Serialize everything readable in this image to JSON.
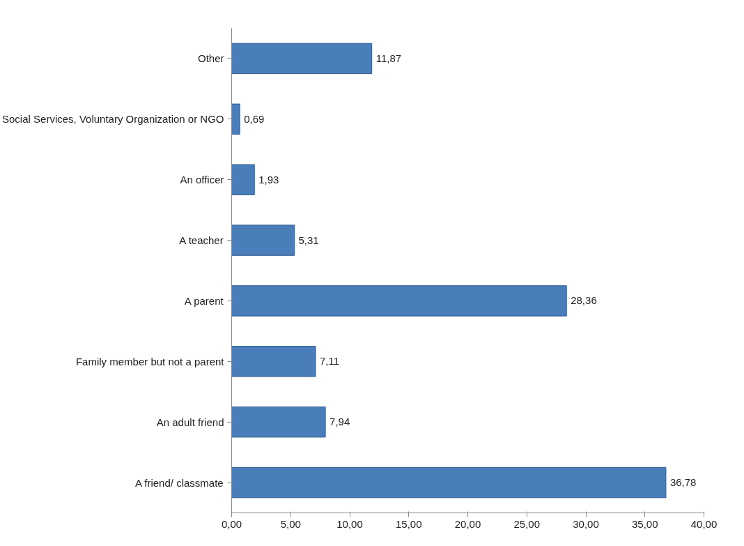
{
  "chart_data": {
    "type": "bar",
    "orientation": "horizontal",
    "categories": [
      "Other",
      "Social Services, Voluntary Organization or NGO",
      "An officer",
      "A teacher",
      "A parent",
      "Family member but not a parent",
      "An adult friend",
      "A friend/ classmate"
    ],
    "values": [
      11.87,
      0.69,
      1.93,
      5.31,
      28.36,
      7.11,
      7.94,
      36.78
    ],
    "value_labels": [
      "11,87",
      "0,69",
      "1,93",
      "5,31",
      "28,36",
      "7,11",
      "7,94",
      "36,78"
    ],
    "color": "#4a7ebb",
    "xlim": [
      0,
      40
    ],
    "xticks": [
      {
        "value": 0,
        "label": "0,00"
      },
      {
        "value": 5,
        "label": "5,00"
      },
      {
        "value": 10,
        "label": "10,00"
      },
      {
        "value": 15,
        "label": "15,00"
      },
      {
        "value": 20,
        "label": "20,00"
      },
      {
        "value": 25,
        "label": "25,00"
      },
      {
        "value": 30,
        "label": "30,00"
      },
      {
        "value": 35,
        "label": "35,00"
      },
      {
        "value": 40,
        "label": "40,00"
      }
    ],
    "grid": false
  }
}
